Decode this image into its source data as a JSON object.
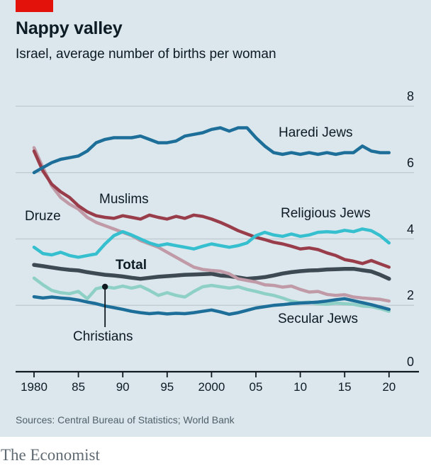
{
  "header": {
    "title": "Nappy valley",
    "subtitle": "Israel, average number of births per woman"
  },
  "footer": {
    "sources": "Sources: Central Bureau of Statistics; World Bank",
    "brand": "The Economist"
  },
  "colors": {
    "background": "#dbe7ec",
    "accent_red": "#e3120b",
    "grid": "#c2cdd3",
    "axis": "#10191f",
    "text": "#0d1b24",
    "muted": "#506069"
  },
  "chart_data": {
    "type": "line",
    "title": "Nappy valley",
    "subtitle": "Israel, average number of births per woman",
    "xlabel": "",
    "ylabel": "average number of births per woman",
    "ylim": [
      0,
      8
    ],
    "xlim": [
      1980,
      2021
    ],
    "grid": "horizontal",
    "legend": "inline-labels",
    "y_ticks": [
      {
        "value": 0,
        "label": "0"
      },
      {
        "value": 2,
        "label": "2"
      },
      {
        "value": 4,
        "label": "4"
      },
      {
        "value": 6,
        "label": "6"
      },
      {
        "value": 8,
        "label": "8"
      }
    ],
    "x_ticks": [
      {
        "value": 1980,
        "label": "1980"
      },
      {
        "value": 1985,
        "label": "85"
      },
      {
        "value": 1990,
        "label": "90"
      },
      {
        "value": 1995,
        "label": "95"
      },
      {
        "value": 2000,
        "label": "2000"
      },
      {
        "value": 2005,
        "label": "05"
      },
      {
        "value": 2010,
        "label": "10"
      },
      {
        "value": 2015,
        "label": "15"
      },
      {
        "value": 2020,
        "label": "20"
      }
    ],
    "years": [
      1980,
      1981,
      1982,
      1983,
      1984,
      1985,
      1986,
      1987,
      1988,
      1989,
      1990,
      1991,
      1992,
      1993,
      1994,
      1995,
      1996,
      1997,
      1998,
      1999,
      2000,
      2001,
      2002,
      2003,
      2004,
      2005,
      2006,
      2007,
      2008,
      2009,
      2010,
      2011,
      2012,
      2013,
      2014,
      2015,
      2016,
      2017,
      2018,
      2019,
      2020
    ],
    "series": [
      {
        "label": "Total",
        "color": "#3d4a53",
        "width": 5.5,
        "values": [
          3.22,
          3.18,
          3.14,
          3.1,
          3.07,
          3.05,
          3.0,
          2.96,
          2.92,
          2.9,
          2.87,
          2.83,
          2.8,
          2.83,
          2.86,
          2.88,
          2.9,
          2.92,
          2.93,
          2.94,
          2.95,
          2.9,
          2.88,
          2.84,
          2.8,
          2.82,
          2.85,
          2.9,
          2.96,
          3.0,
          3.03,
          3.05,
          3.06,
          3.08,
          3.09,
          3.1,
          3.1,
          3.06,
          3.02,
          2.92,
          2.8
        ]
      },
      {
        "label": "Druze",
        "color": "#c09aa7",
        "width": 4.5,
        "values": [
          6.75,
          6.15,
          5.6,
          5.25,
          5.05,
          4.9,
          4.65,
          4.5,
          4.4,
          4.3,
          4.2,
          4.1,
          3.95,
          3.85,
          3.75,
          3.6,
          3.45,
          3.3,
          3.15,
          3.08,
          3.05,
          3.03,
          2.95,
          2.8,
          2.75,
          2.7,
          2.62,
          2.6,
          2.55,
          2.58,
          2.48,
          2.4,
          2.42,
          2.33,
          2.3,
          2.32,
          2.25,
          2.22,
          2.2,
          2.18,
          2.13
        ]
      },
      {
        "label": "Christians",
        "color": "#8fd0c6",
        "width": 4.5,
        "values": [
          2.82,
          2.62,
          2.45,
          2.38,
          2.35,
          2.42,
          2.2,
          2.5,
          2.56,
          2.52,
          2.58,
          2.52,
          2.58,
          2.45,
          2.3,
          2.38,
          2.3,
          2.25,
          2.42,
          2.56,
          2.6,
          2.56,
          2.52,
          2.56,
          2.48,
          2.42,
          2.35,
          2.3,
          2.22,
          2.13,
          2.08,
          2.1,
          2.05,
          2.03,
          2.07,
          2.05,
          2.03,
          1.98,
          1.96,
          1.9,
          1.82
        ]
      },
      {
        "label": "Muslims",
        "color": "#993d4b",
        "width": 4.5,
        "values": [
          6.65,
          6.05,
          5.65,
          5.42,
          5.25,
          5.0,
          4.82,
          4.7,
          4.65,
          4.62,
          4.7,
          4.65,
          4.6,
          4.72,
          4.65,
          4.6,
          4.68,
          4.62,
          4.72,
          4.68,
          4.6,
          4.5,
          4.38,
          4.25,
          4.15,
          4.05,
          3.98,
          3.9,
          3.85,
          3.78,
          3.7,
          3.73,
          3.68,
          3.58,
          3.5,
          3.38,
          3.33,
          3.26,
          3.35,
          3.25,
          3.15
        ]
      },
      {
        "label": "Religious Jews",
        "color": "#35bfcf",
        "width": 4.5,
        "values": [
          3.75,
          3.56,
          3.52,
          3.6,
          3.5,
          3.45,
          3.5,
          3.55,
          3.85,
          4.1,
          4.22,
          4.12,
          4.0,
          3.88,
          3.8,
          3.85,
          3.8,
          3.75,
          3.7,
          3.78,
          3.85,
          3.8,
          3.75,
          3.8,
          3.88,
          4.1,
          4.2,
          4.12,
          4.08,
          4.15,
          4.08,
          4.12,
          4.2,
          4.22,
          4.2,
          4.26,
          4.22,
          4.3,
          4.25,
          4.1,
          3.88
        ]
      },
      {
        "label": "Secular Jews",
        "color": "#1d6e99",
        "width": 4.5,
        "values": [
          2.26,
          2.22,
          2.25,
          2.22,
          2.2,
          2.16,
          2.1,
          2.05,
          1.98,
          1.93,
          1.88,
          1.82,
          1.78,
          1.75,
          1.77,
          1.74,
          1.76,
          1.75,
          1.78,
          1.82,
          1.86,
          1.8,
          1.73,
          1.78,
          1.85,
          1.92,
          1.96,
          2.0,
          2.02,
          2.05,
          2.07,
          2.08,
          2.1,
          2.13,
          2.17,
          2.2,
          2.14,
          2.08,
          2.02,
          1.95,
          1.88
        ]
      },
      {
        "label": "Haredi Jews",
        "color": "#1d6e99",
        "width": 4.5,
        "values": [
          6.0,
          6.15,
          6.3,
          6.4,
          6.45,
          6.5,
          6.65,
          6.9,
          7.0,
          7.05,
          7.05,
          7.05,
          7.1,
          7.0,
          6.9,
          6.9,
          6.95,
          7.1,
          7.15,
          7.2,
          7.3,
          7.35,
          7.25,
          7.35,
          7.35,
          7.05,
          6.8,
          6.6,
          6.55,
          6.6,
          6.55,
          6.6,
          6.55,
          6.6,
          6.55,
          6.6,
          6.6,
          6.8,
          6.65,
          6.6,
          6.6
        ]
      }
    ],
    "callout": {
      "series": "Christians",
      "year": 1988,
      "value": 2.56
    }
  }
}
